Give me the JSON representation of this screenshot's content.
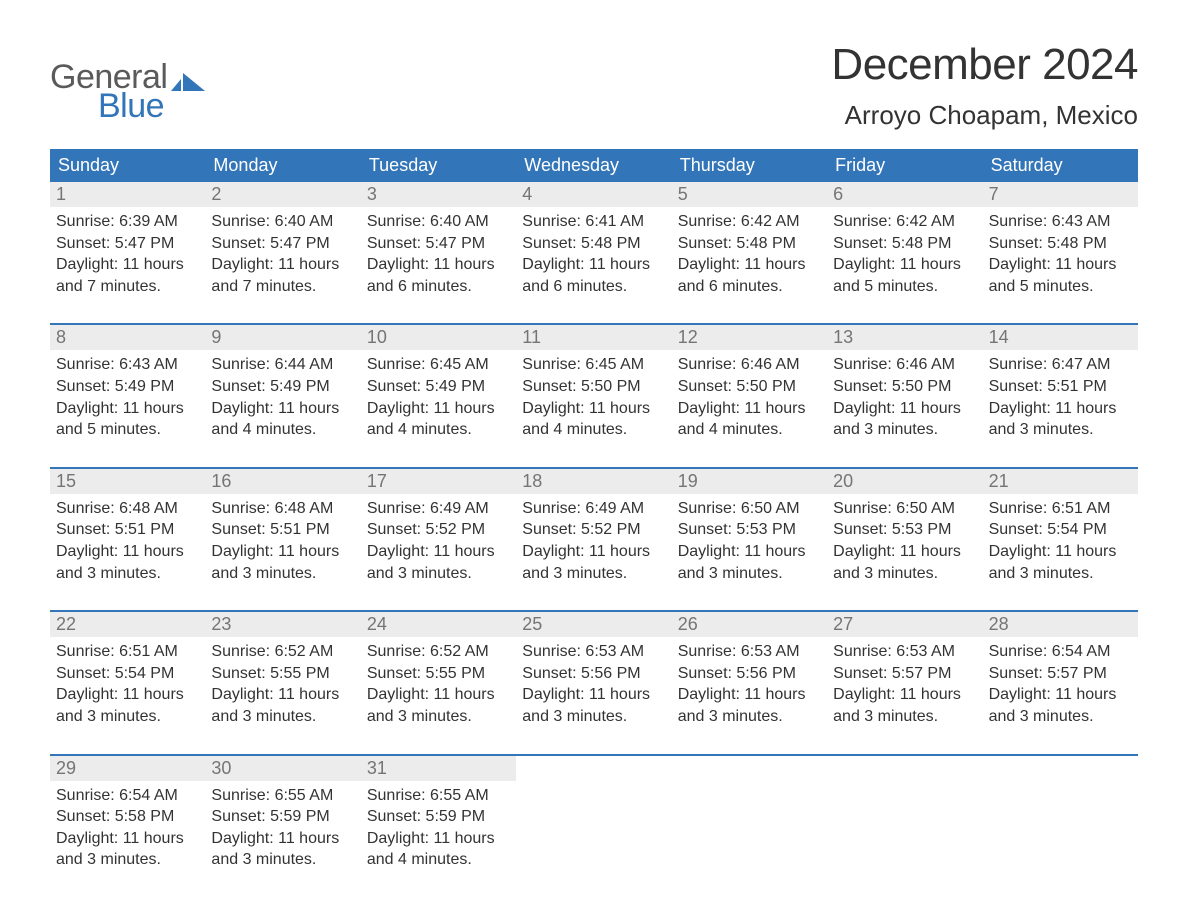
{
  "brand": {
    "word1": "General",
    "word2": "Blue",
    "word1_color": "#5a5a5a",
    "word2_color": "#3275b8",
    "flag_color": "#3275b8"
  },
  "header": {
    "month_year": "December 2024",
    "location": "Arroyo Choapam, Mexico",
    "title_fontsize": 44,
    "location_fontsize": 26
  },
  "colors": {
    "header_bg": "#3275b8",
    "header_text": "#ffffff",
    "daynum_bg": "#ececec",
    "daynum_text": "#757575",
    "body_text": "#333333",
    "week_border": "#3275b8",
    "page_bg": "#ffffff"
  },
  "weekdays": [
    "Sunday",
    "Monday",
    "Tuesday",
    "Wednesday",
    "Thursday",
    "Friday",
    "Saturday"
  ],
  "weeks": [
    [
      {
        "n": "1",
        "sunrise": "Sunrise: 6:39 AM",
        "sunset": "Sunset: 5:47 PM",
        "dl1": "Daylight: 11 hours",
        "dl2": "and 7 minutes."
      },
      {
        "n": "2",
        "sunrise": "Sunrise: 6:40 AM",
        "sunset": "Sunset: 5:47 PM",
        "dl1": "Daylight: 11 hours",
        "dl2": "and 7 minutes."
      },
      {
        "n": "3",
        "sunrise": "Sunrise: 6:40 AM",
        "sunset": "Sunset: 5:47 PM",
        "dl1": "Daylight: 11 hours",
        "dl2": "and 6 minutes."
      },
      {
        "n": "4",
        "sunrise": "Sunrise: 6:41 AM",
        "sunset": "Sunset: 5:48 PM",
        "dl1": "Daylight: 11 hours",
        "dl2": "and 6 minutes."
      },
      {
        "n": "5",
        "sunrise": "Sunrise: 6:42 AM",
        "sunset": "Sunset: 5:48 PM",
        "dl1": "Daylight: 11 hours",
        "dl2": "and 6 minutes."
      },
      {
        "n": "6",
        "sunrise": "Sunrise: 6:42 AM",
        "sunset": "Sunset: 5:48 PM",
        "dl1": "Daylight: 11 hours",
        "dl2": "and 5 minutes."
      },
      {
        "n": "7",
        "sunrise": "Sunrise: 6:43 AM",
        "sunset": "Sunset: 5:48 PM",
        "dl1": "Daylight: 11 hours",
        "dl2": "and 5 minutes."
      }
    ],
    [
      {
        "n": "8",
        "sunrise": "Sunrise: 6:43 AM",
        "sunset": "Sunset: 5:49 PM",
        "dl1": "Daylight: 11 hours",
        "dl2": "and 5 minutes."
      },
      {
        "n": "9",
        "sunrise": "Sunrise: 6:44 AM",
        "sunset": "Sunset: 5:49 PM",
        "dl1": "Daylight: 11 hours",
        "dl2": "and 4 minutes."
      },
      {
        "n": "10",
        "sunrise": "Sunrise: 6:45 AM",
        "sunset": "Sunset: 5:49 PM",
        "dl1": "Daylight: 11 hours",
        "dl2": "and 4 minutes."
      },
      {
        "n": "11",
        "sunrise": "Sunrise: 6:45 AM",
        "sunset": "Sunset: 5:50 PM",
        "dl1": "Daylight: 11 hours",
        "dl2": "and 4 minutes."
      },
      {
        "n": "12",
        "sunrise": "Sunrise: 6:46 AM",
        "sunset": "Sunset: 5:50 PM",
        "dl1": "Daylight: 11 hours",
        "dl2": "and 4 minutes."
      },
      {
        "n": "13",
        "sunrise": "Sunrise: 6:46 AM",
        "sunset": "Sunset: 5:50 PM",
        "dl1": "Daylight: 11 hours",
        "dl2": "and 3 minutes."
      },
      {
        "n": "14",
        "sunrise": "Sunrise: 6:47 AM",
        "sunset": "Sunset: 5:51 PM",
        "dl1": "Daylight: 11 hours",
        "dl2": "and 3 minutes."
      }
    ],
    [
      {
        "n": "15",
        "sunrise": "Sunrise: 6:48 AM",
        "sunset": "Sunset: 5:51 PM",
        "dl1": "Daylight: 11 hours",
        "dl2": "and 3 minutes."
      },
      {
        "n": "16",
        "sunrise": "Sunrise: 6:48 AM",
        "sunset": "Sunset: 5:51 PM",
        "dl1": "Daylight: 11 hours",
        "dl2": "and 3 minutes."
      },
      {
        "n": "17",
        "sunrise": "Sunrise: 6:49 AM",
        "sunset": "Sunset: 5:52 PM",
        "dl1": "Daylight: 11 hours",
        "dl2": "and 3 minutes."
      },
      {
        "n": "18",
        "sunrise": "Sunrise: 6:49 AM",
        "sunset": "Sunset: 5:52 PM",
        "dl1": "Daylight: 11 hours",
        "dl2": "and 3 minutes."
      },
      {
        "n": "19",
        "sunrise": "Sunrise: 6:50 AM",
        "sunset": "Sunset: 5:53 PM",
        "dl1": "Daylight: 11 hours",
        "dl2": "and 3 minutes."
      },
      {
        "n": "20",
        "sunrise": "Sunrise: 6:50 AM",
        "sunset": "Sunset: 5:53 PM",
        "dl1": "Daylight: 11 hours",
        "dl2": "and 3 minutes."
      },
      {
        "n": "21",
        "sunrise": "Sunrise: 6:51 AM",
        "sunset": "Sunset: 5:54 PM",
        "dl1": "Daylight: 11 hours",
        "dl2": "and 3 minutes."
      }
    ],
    [
      {
        "n": "22",
        "sunrise": "Sunrise: 6:51 AM",
        "sunset": "Sunset: 5:54 PM",
        "dl1": "Daylight: 11 hours",
        "dl2": "and 3 minutes."
      },
      {
        "n": "23",
        "sunrise": "Sunrise: 6:52 AM",
        "sunset": "Sunset: 5:55 PM",
        "dl1": "Daylight: 11 hours",
        "dl2": "and 3 minutes."
      },
      {
        "n": "24",
        "sunrise": "Sunrise: 6:52 AM",
        "sunset": "Sunset: 5:55 PM",
        "dl1": "Daylight: 11 hours",
        "dl2": "and 3 minutes."
      },
      {
        "n": "25",
        "sunrise": "Sunrise: 6:53 AM",
        "sunset": "Sunset: 5:56 PM",
        "dl1": "Daylight: 11 hours",
        "dl2": "and 3 minutes."
      },
      {
        "n": "26",
        "sunrise": "Sunrise: 6:53 AM",
        "sunset": "Sunset: 5:56 PM",
        "dl1": "Daylight: 11 hours",
        "dl2": "and 3 minutes."
      },
      {
        "n": "27",
        "sunrise": "Sunrise: 6:53 AM",
        "sunset": "Sunset: 5:57 PM",
        "dl1": "Daylight: 11 hours",
        "dl2": "and 3 minutes."
      },
      {
        "n": "28",
        "sunrise": "Sunrise: 6:54 AM",
        "sunset": "Sunset: 5:57 PM",
        "dl1": "Daylight: 11 hours",
        "dl2": "and 3 minutes."
      }
    ],
    [
      {
        "n": "29",
        "sunrise": "Sunrise: 6:54 AM",
        "sunset": "Sunset: 5:58 PM",
        "dl1": "Daylight: 11 hours",
        "dl2": "and 3 minutes."
      },
      {
        "n": "30",
        "sunrise": "Sunrise: 6:55 AM",
        "sunset": "Sunset: 5:59 PM",
        "dl1": "Daylight: 11 hours",
        "dl2": "and 3 minutes."
      },
      {
        "n": "31",
        "sunrise": "Sunrise: 6:55 AM",
        "sunset": "Sunset: 5:59 PM",
        "dl1": "Daylight: 11 hours",
        "dl2": "and 4 minutes."
      },
      null,
      null,
      null,
      null
    ]
  ]
}
